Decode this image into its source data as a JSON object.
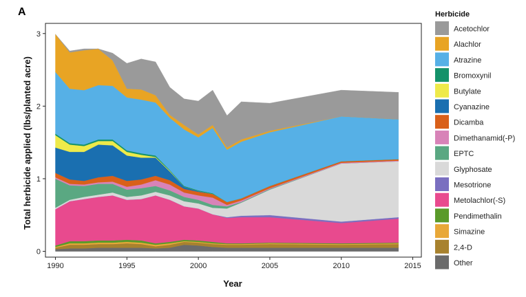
{
  "chart_data": {
    "type": "area",
    "panel_label": "A",
    "xlabel": "Year",
    "ylabel": "Total herbicide applied (lbs/planted acre)",
    "xlim": [
      1989.3,
      2015.6
    ],
    "ylim": [
      -0.08,
      3.14
    ],
    "x_ticks": [
      1990,
      1995,
      2000,
      2005,
      2010,
      2015
    ],
    "y_ticks": [
      0,
      1,
      2,
      3
    ],
    "legend_title": "Herbicide",
    "legend_position": "right",
    "stacked": true,
    "x": [
      1990,
      1991,
      1992,
      1993,
      1994,
      1995,
      1996,
      1997,
      1998,
      1999,
      2000,
      2001,
      2002,
      2003,
      2005,
      2010,
      2014
    ],
    "series": [
      {
        "name": "Other",
        "color": "#6b6b6b",
        "values": [
          0.03,
          0.04,
          0.04,
          0.05,
          0.05,
          0.05,
          0.05,
          0.04,
          0.05,
          0.09,
          0.08,
          0.06,
          0.05,
          0.05,
          0.05,
          0.05,
          0.05
        ]
      },
      {
        "name": "2,4-D",
        "color": "#a8822e",
        "values": [
          0.02,
          0.05,
          0.05,
          0.05,
          0.05,
          0.06,
          0.05,
          0.03,
          0.04,
          0.04,
          0.04,
          0.04,
          0.04,
          0.04,
          0.05,
          0.04,
          0.05
        ]
      },
      {
        "name": "Simazine",
        "color": "#e8a838",
        "values": [
          0.01,
          0.02,
          0.02,
          0.02,
          0.02,
          0.02,
          0.02,
          0.02,
          0.02,
          0.01,
          0.01,
          0.01,
          0.01,
          0.01,
          0.01,
          0.01,
          0.01
        ]
      },
      {
        "name": "Pendimethalin",
        "color": "#5a9a2a",
        "values": [
          0.02,
          0.03,
          0.03,
          0.03,
          0.03,
          0.03,
          0.03,
          0.02,
          0.02,
          0.02,
          0.02,
          0.02,
          0.01,
          0.01,
          0.01,
          0.01,
          0.01
        ]
      },
      {
        "name": "Metolachlor(-S)",
        "color": "#e84a8e",
        "values": [
          0.5,
          0.55,
          0.58,
          0.6,
          0.62,
          0.55,
          0.57,
          0.66,
          0.58,
          0.46,
          0.44,
          0.38,
          0.35,
          0.36,
          0.35,
          0.28,
          0.33
        ]
      },
      {
        "name": "Mesotrione",
        "color": "#7a6fc0",
        "values": [
          0,
          0,
          0,
          0,
          0,
          0,
          0,
          0,
          0,
          0,
          0,
          0,
          0.01,
          0.02,
          0.03,
          0.02,
          0.02
        ]
      },
      {
        "name": "Glyphosate",
        "color": "#d9d9d9",
        "values": [
          0.02,
          0.02,
          0.03,
          0.03,
          0.04,
          0.04,
          0.05,
          0.05,
          0.06,
          0.07,
          0.07,
          0.09,
          0.12,
          0.18,
          0.35,
          0.8,
          0.77
        ]
      },
      {
        "name": "EPTC",
        "color": "#5aa882",
        "values": [
          0.4,
          0.2,
          0.15,
          0.15,
          0.12,
          0.1,
          0.1,
          0.08,
          0.07,
          0.06,
          0.05,
          0.04,
          0.03,
          0.01,
          0.01,
          0,
          0
        ]
      },
      {
        "name": "Dimethanamid(-P)",
        "color": "#d883b8",
        "values": [
          0.02,
          0.02,
          0.02,
          0.02,
          0.03,
          0.04,
          0.05,
          0.08,
          0.08,
          0.06,
          0.06,
          0.1,
          0.02,
          0.02,
          0.01,
          0.01,
          0.01
        ]
      },
      {
        "name": "Dicamba",
        "color": "#d9601a",
        "values": [
          0.06,
          0.06,
          0.05,
          0.07,
          0.08,
          0.08,
          0.07,
          0.06,
          0.06,
          0.05,
          0.05,
          0.05,
          0.04,
          0.03,
          0.03,
          0.02,
          0.02
        ]
      },
      {
        "name": "Cyanazine",
        "color": "#1a6fb0",
        "values": [
          0.35,
          0.38,
          0.4,
          0.45,
          0.42,
          0.35,
          0.3,
          0.25,
          0.12,
          0.03,
          0.01,
          0,
          0,
          0,
          0,
          0,
          0
        ]
      },
      {
        "name": "Butylate",
        "color": "#eeea4a",
        "values": [
          0.17,
          0.1,
          0.08,
          0.05,
          0.06,
          0.05,
          0.04,
          0.01,
          0.01,
          0,
          0,
          0,
          0,
          0,
          0,
          0,
          0
        ]
      },
      {
        "name": "Bromoxynil",
        "color": "#14926a",
        "values": [
          0.02,
          0.02,
          0.02,
          0.02,
          0.02,
          0.02,
          0.02,
          0.02,
          0.01,
          0.01,
          0.01,
          0.01,
          0,
          0,
          0,
          0,
          0
        ]
      },
      {
        "name": "Atrazine",
        "color": "#56b0e6",
        "values": [
          0.85,
          0.75,
          0.75,
          0.75,
          0.74,
          0.73,
          0.74,
          0.73,
          0.72,
          0.78,
          0.73,
          0.9,
          0.72,
          0.78,
          0.74,
          0.62,
          0.55
        ]
      },
      {
        "name": "Alachlor",
        "color": "#e8a424",
        "values": [
          0.52,
          0.5,
          0.55,
          0.5,
          0.35,
          0.12,
          0.14,
          0.1,
          0.04,
          0.06,
          0.04,
          0.04,
          0.03,
          0.03,
          0.02,
          0,
          0
        ]
      },
      {
        "name": "Acetochlor",
        "color": "#9a9a9a",
        "values": [
          0,
          0.02,
          0.02,
          0,
          0.1,
          0.35,
          0.42,
          0.46,
          0.38,
          0.36,
          0.46,
          0.48,
          0.44,
          0.52,
          0.38,
          0.36,
          0.37
        ]
      }
    ],
    "legend_order": [
      "Acetochlor",
      "Alachlor",
      "Atrazine",
      "Bromoxynil",
      "Butylate",
      "Cyanazine",
      "Dicamba",
      "Dimethanamid(-P)",
      "EPTC",
      "Glyphosate",
      "Mesotrione",
      "Metolachlor(-S)",
      "Pendimethalin",
      "Simazine",
      "2,4-D",
      "Other"
    ]
  }
}
